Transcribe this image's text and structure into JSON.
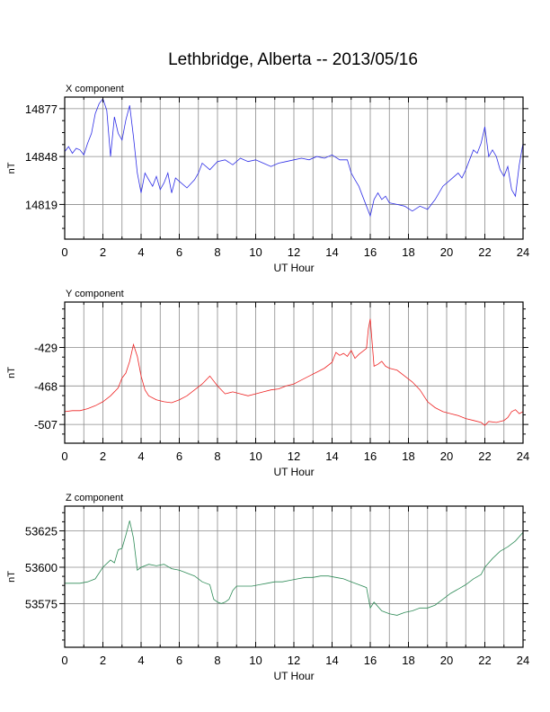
{
  "page": {
    "title": "Lethbridge, Alberta -- 2013/05/16"
  },
  "chart_data": [
    {
      "type": "line",
      "title": "X component",
      "xlabel": "UT Hour",
      "ylabel": "nT",
      "xlim": [
        0,
        24
      ],
      "xticks": [
        0,
        2,
        4,
        6,
        8,
        10,
        12,
        14,
        16,
        18,
        20,
        22,
        24
      ],
      "ylim": [
        14798,
        14884
      ],
      "yticks": [
        14819,
        14848,
        14877
      ],
      "grid": true,
      "color": "#2d2de6",
      "series": [
        {
          "x": [
            0,
            0.2,
            0.4,
            0.6,
            0.8,
            1.0,
            1.2,
            1.4,
            1.6,
            1.8,
            2.0,
            2.2,
            2.4,
            2.6,
            2.8,
            3.0,
            3.2,
            3.4,
            3.6,
            3.8,
            4.0,
            4.2,
            4.4,
            4.6,
            4.8,
            5.0,
            5.2,
            5.4,
            5.6,
            5.8,
            6.0,
            6.4,
            6.8,
            7.0,
            7.2,
            7.6,
            8.0,
            8.4,
            8.8,
            9.2,
            9.6,
            10.0,
            10.4,
            10.8,
            11.2,
            11.6,
            12.0,
            12.4,
            12.8,
            13.2,
            13.6,
            14.0,
            14.4,
            14.8,
            15.0,
            15.2,
            15.4,
            15.6,
            15.8,
            16.0,
            16.2,
            16.4,
            16.6,
            16.8,
            17.0,
            17.4,
            17.8,
            18.2,
            18.6,
            19.0,
            19.4,
            19.8,
            20.2,
            20.6,
            20.8,
            21.0,
            21.2,
            21.4,
            21.6,
            21.8,
            22.0,
            22.2,
            22.4,
            22.6,
            22.8,
            23.0,
            23.2,
            23.4,
            23.6,
            23.8,
            24.0
          ],
          "y": [
            14851,
            14854,
            14850,
            14853,
            14852,
            14849,
            14856,
            14862,
            14874,
            14880,
            14883,
            14876,
            14848,
            14872,
            14862,
            14858,
            14870,
            14879,
            14860,
            14838,
            14826,
            14838,
            14834,
            14830,
            14836,
            14828,
            14832,
            14838,
            14826,
            14835,
            14833,
            14829,
            14834,
            14838,
            14844,
            14840,
            14845,
            14846,
            14843,
            14847,
            14845,
            14846,
            14844,
            14842,
            14844,
            14845,
            14846,
            14847,
            14846,
            14848,
            14847,
            14849,
            14846,
            14846,
            14838,
            14834,
            14830,
            14824,
            14818,
            14812,
            14822,
            14826,
            14822,
            14824,
            14820,
            14819,
            14818,
            14815,
            14818,
            14816,
            14822,
            14830,
            14834,
            14838,
            14835,
            14840,
            14846,
            14852,
            14850,
            14856,
            14866,
            14848,
            14852,
            14848,
            14840,
            14836,
            14842,
            14828,
            14824,
            14843,
            14856
          ]
        }
      ]
    },
    {
      "type": "line",
      "title": "Y component",
      "xlabel": "UT Hour",
      "ylabel": "nT",
      "xlim": [
        0,
        24
      ],
      "xticks": [
        0,
        2,
        4,
        6,
        8,
        10,
        12,
        14,
        16,
        18,
        20,
        22,
        24
      ],
      "ylim": [
        -526,
        -383
      ],
      "yticks": [
        -507,
        -468,
        -429
      ],
      "grid": true,
      "color": "#ee2222",
      "series": [
        {
          "x": [
            0,
            0.4,
            0.8,
            1.2,
            1.6,
            2.0,
            2.4,
            2.8,
            3.0,
            3.2,
            3.4,
            3.6,
            3.8,
            4.0,
            4.2,
            4.4,
            4.8,
            5.2,
            5.6,
            6.0,
            6.4,
            6.8,
            7.2,
            7.6,
            8.0,
            8.4,
            8.8,
            9.2,
            9.6,
            10.0,
            10.4,
            10.8,
            11.2,
            11.6,
            12.0,
            12.4,
            12.8,
            13.2,
            13.6,
            14.0,
            14.2,
            14.4,
            14.6,
            14.8,
            15.0,
            15.2,
            15.4,
            15.6,
            15.8,
            15.9,
            16.0,
            16.2,
            16.4,
            16.6,
            16.8,
            17.0,
            17.4,
            17.8,
            18.2,
            18.6,
            19.0,
            19.4,
            19.8,
            20.2,
            20.6,
            21.0,
            21.4,
            21.8,
            22.0,
            22.2,
            22.6,
            23.0,
            23.2,
            23.4,
            23.6,
            23.8,
            24.0
          ],
          "y": [
            -494,
            -493,
            -493,
            -491,
            -488,
            -484,
            -478,
            -470,
            -460,
            -455,
            -443,
            -426,
            -438,
            -458,
            -472,
            -478,
            -482,
            -484,
            -485,
            -482,
            -478,
            -472,
            -466,
            -458,
            -468,
            -476,
            -474,
            -476,
            -478,
            -476,
            -474,
            -472,
            -471,
            -468,
            -466,
            -462,
            -458,
            -454,
            -450,
            -444,
            -434,
            -437,
            -435,
            -438,
            -432,
            -440,
            -436,
            -433,
            -430,
            -410,
            -400,
            -448,
            -446,
            -443,
            -448,
            -450,
            -452,
            -458,
            -464,
            -472,
            -484,
            -490,
            -494,
            -496,
            -498,
            -501,
            -503,
            -505,
            -508,
            -504,
            -505,
            -503,
            -500,
            -494,
            -492,
            -496,
            -494
          ]
        }
      ]
    },
    {
      "type": "line",
      "title": "Z component",
      "xlabel": "UT Hour",
      "ylabel": "nT",
      "xlim": [
        0,
        24
      ],
      "xticks": [
        0,
        2,
        4,
        6,
        8,
        10,
        12,
        14,
        16,
        18,
        20,
        22,
        24
      ],
      "ylim": [
        53545,
        53642
      ],
      "yticks": [
        53575,
        53600,
        53625
      ],
      "grid": true,
      "color": "#2e8b57",
      "series": [
        {
          "x": [
            0,
            0.4,
            0.8,
            1.2,
            1.6,
            2.0,
            2.4,
            2.6,
            2.8,
            3.0,
            3.2,
            3.4,
            3.6,
            3.8,
            4.0,
            4.4,
            4.8,
            5.2,
            5.6,
            6.0,
            6.4,
            6.8,
            7.2,
            7.6,
            7.8,
            8.0,
            8.2,
            8.4,
            8.6,
            8.8,
            9.0,
            9.4,
            9.8,
            10.2,
            10.6,
            11.0,
            11.4,
            11.8,
            12.2,
            12.6,
            13.0,
            13.4,
            13.8,
            14.2,
            14.6,
            15.0,
            15.4,
            15.8,
            16.0,
            16.2,
            16.6,
            17.0,
            17.4,
            17.8,
            18.2,
            18.6,
            19.0,
            19.4,
            19.8,
            20.2,
            20.6,
            21.0,
            21.4,
            21.8,
            22.0,
            22.4,
            22.8,
            23.2,
            23.6,
            24.0
          ],
          "y": [
            53589,
            53589,
            53589,
            53590,
            53592,
            53600,
            53605,
            53603,
            53612,
            53613,
            53622,
            53632,
            53620,
            53598,
            53600,
            53602,
            53601,
            53602,
            53599,
            53598,
            53596,
            53594,
            53590,
            53588,
            53578,
            53576,
            53575,
            53576,
            53578,
            53584,
            53587,
            53587,
            53587,
            53588,
            53589,
            53590,
            53590,
            53591,
            53592,
            53593,
            53593,
            53594,
            53594,
            53593,
            53592,
            53590,
            53588,
            53586,
            53572,
            53576,
            53570,
            53568,
            53567,
            53569,
            53570,
            53572,
            53572,
            53574,
            53578,
            53582,
            53585,
            53588,
            53592,
            53595,
            53600,
            53606,
            53611,
            53614,
            53618,
            53624
          ]
        }
      ]
    }
  ]
}
